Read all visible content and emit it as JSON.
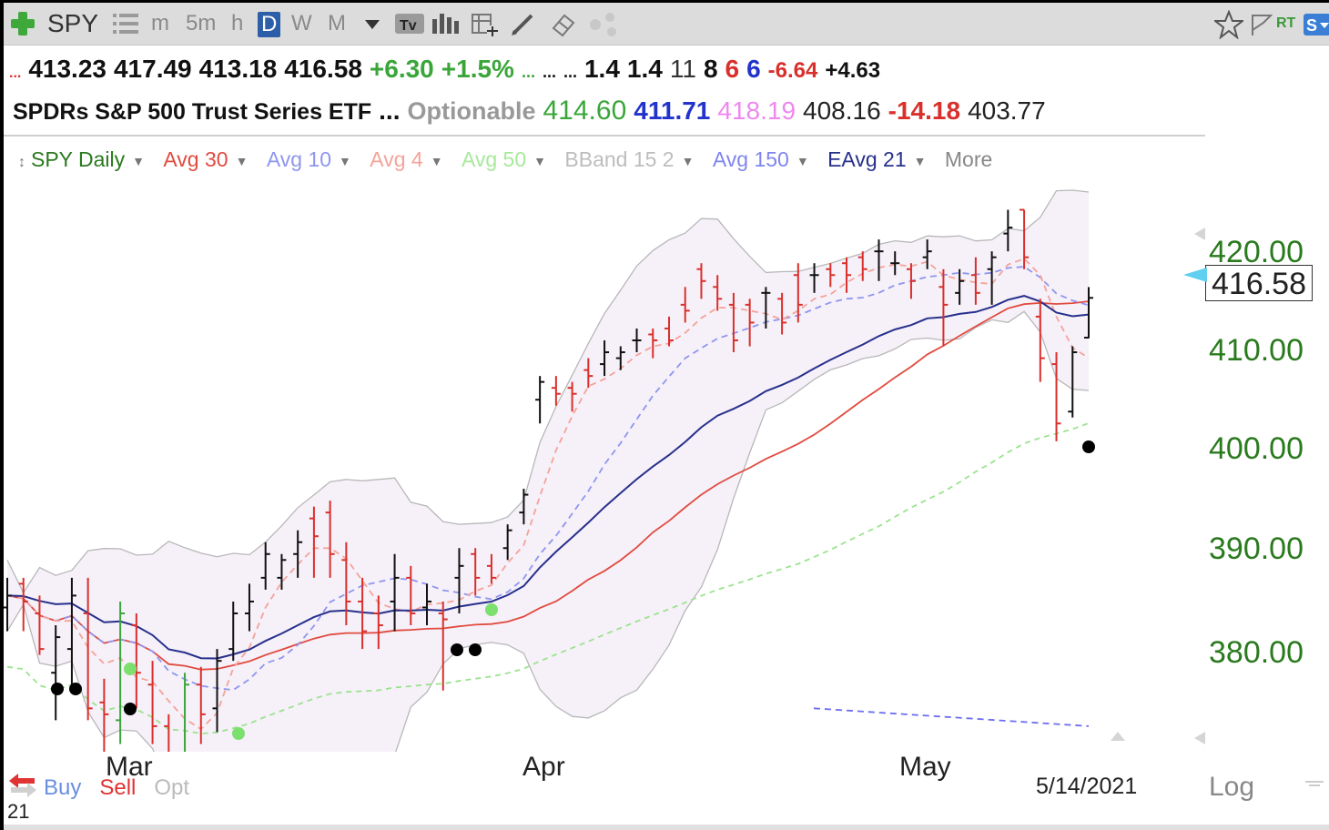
{
  "toolbar": {
    "symbol": "SPY",
    "intervals": [
      "m",
      "5m",
      "h",
      "D",
      "W",
      "M"
    ],
    "selected_interval": "D",
    "right_label": "RT"
  },
  "quote": {
    "lead": "...",
    "open": "413.23",
    "high": "417.49",
    "low": "413.18",
    "close": "416.58",
    "change": "+6.30",
    "change_pct": "+1.5%",
    "ell1": "...",
    "ell2": "...",
    "ell3": "...",
    "v1": "1.4",
    "v2": "1.4",
    "n11": "11",
    "n8": "8",
    "n6a": "6",
    "n6b": "6",
    "neg": "-6.64",
    "pos": "+4.63"
  },
  "info": {
    "name": "SPDRs S&P 500 Trust Series ETF",
    "ell": "...",
    "optionable": "Optionable",
    "p1": "414.60",
    "p2": "411.71",
    "p3": "418.19",
    "p4": "408.16",
    "p5": "-14.18",
    "p6": "403.77"
  },
  "legend": {
    "spy": "SPY Daily",
    "avg30": "Avg 30",
    "avg10": "Avg 10",
    "avg4": "Avg 4",
    "avg50": "Avg 50",
    "bband": "BBand 15 2",
    "avg150": "Avg 150",
    "eavg21": "EAvg 21",
    "more": "More"
  },
  "colors": {
    "up_bar": "#111111",
    "down_bar": "#d9302c",
    "green_bar": "#3aa63a",
    "avg30": "#e04b3f",
    "avg10": "#8f96ee",
    "avg4": "#f4a39a",
    "avg50": "#9be38f",
    "bband": "#b8b8b8",
    "avg150": "#6a6ef0",
    "eavg21": "#27308c",
    "axis_green": "#2a7a1e"
  },
  "chart_data": {
    "type": "candlestick",
    "y_axis_ticks": [
      "420.00",
      "410.00",
      "400.00",
      "390.00",
      "380.00"
    ],
    "ylim": [
      378.5,
      424.5
    ],
    "x_labels": [
      "Mar",
      "Apr",
      "May"
    ],
    "current_price": "416.58",
    "date": "5/14/2021",
    "bars": [
      {
        "o": 390.5,
        "h": 393.0,
        "l": 388.5,
        "c": 391.5
      },
      {
        "o": 392.5,
        "h": 393.0,
        "l": 388.5,
        "c": 391.0
      },
      {
        "o": 390.0,
        "h": 391.5,
        "l": 386.5,
        "c": 387.0
      },
      {
        "o": 385.0,
        "h": 389.0,
        "l": 381.0,
        "c": 388.0
      },
      {
        "o": 387.0,
        "h": 393.0,
        "l": 384.0,
        "c": 391.5
      },
      {
        "o": 390.0,
        "h": 393.0,
        "l": 381.0,
        "c": 382.0
      },
      {
        "o": 382.5,
        "h": 384.5,
        "l": 377.0,
        "c": 381.5
      },
      {
        "o": 381.0,
        "h": 391.0,
        "l": 379.0,
        "c": 390.0
      },
      {
        "o": 389.0,
        "h": 390.0,
        "l": 382.0,
        "c": 385.0
      },
      {
        "o": 384.0,
        "h": 386.0,
        "l": 379.0,
        "c": 380.5
      },
      {
        "o": 380.5,
        "h": 381.5,
        "l": 373.0,
        "c": 375.0
      },
      {
        "o": 376.0,
        "h": 385.0,
        "l": 375.0,
        "c": 384.0
      },
      {
        "o": 384.0,
        "h": 385.5,
        "l": 379.0,
        "c": 381.5
      },
      {
        "o": 382.0,
        "h": 387.0,
        "l": 380.0,
        "c": 386.0
      },
      {
        "o": 387.0,
        "h": 391.0,
        "l": 386.0,
        "c": 390.0
      },
      {
        "o": 390.0,
        "h": 392.5,
        "l": 388.5,
        "c": 391.0
      },
      {
        "o": 393.0,
        "h": 396.0,
        "l": 392.0,
        "c": 395.0
      },
      {
        "o": 393.0,
        "h": 395.0,
        "l": 392.0,
        "c": 394.5
      },
      {
        "o": 395.0,
        "h": 397.0,
        "l": 393.0,
        "c": 396.0
      },
      {
        "o": 398.0,
        "h": 399.0,
        "l": 393.0,
        "c": 396.5
      },
      {
        "o": 398.5,
        "h": 399.5,
        "l": 393.0,
        "c": 395.0
      },
      {
        "o": 394.5,
        "h": 396.0,
        "l": 389.0,
        "c": 391.0
      },
      {
        "o": 391.0,
        "h": 393.0,
        "l": 387.0,
        "c": 388.5
      },
      {
        "o": 390.0,
        "h": 391.5,
        "l": 387.0,
        "c": 389.0
      },
      {
        "o": 391.0,
        "h": 395.0,
        "l": 388.5,
        "c": 393.0
      },
      {
        "o": 393.0,
        "h": 394.0,
        "l": 389.0,
        "c": 390.0
      },
      {
        "o": 390.5,
        "h": 392.5,
        "l": 389.0,
        "c": 391.0
      },
      {
        "o": 390.0,
        "h": 391.0,
        "l": 383.5,
        "c": 389.5
      },
      {
        "o": 393.0,
        "h": 395.5,
        "l": 390.0,
        "c": 394.0
      },
      {
        "o": 395.0,
        "h": 395.5,
        "l": 391.5,
        "c": 393.0
      },
      {
        "o": 394.0,
        "h": 395.0,
        "l": 392.5,
        "c": 393.0
      },
      {
        "o": 395.5,
        "h": 397.5,
        "l": 394.5,
        "c": 397.0
      },
      {
        "o": 398.5,
        "h": 400.5,
        "l": 397.5,
        "c": 400.0
      },
      {
        "o": 408.0,
        "h": 410.0,
        "l": 406.0,
        "c": 409.5
      },
      {
        "o": 409.0,
        "h": 410.0,
        "l": 407.5,
        "c": 408.5
      },
      {
        "o": 409.0,
        "h": 409.5,
        "l": 407.0,
        "c": 408.5
      },
      {
        "o": 410.5,
        "h": 411.5,
        "l": 409.0,
        "c": 410.0
      },
      {
        "o": 411.0,
        "h": 413.0,
        "l": 410.0,
        "c": 412.0
      },
      {
        "o": 411.5,
        "h": 412.5,
        "l": 410.5,
        "c": 412.0
      },
      {
        "o": 413.0,
        "h": 414.0,
        "l": 412.0,
        "c": 413.0
      },
      {
        "o": 413.5,
        "h": 414.0,
        "l": 411.5,
        "c": 413.0
      },
      {
        "o": 414.0,
        "h": 415.0,
        "l": 412.5,
        "c": 413.0
      },
      {
        "o": 416.0,
        "h": 417.5,
        "l": 414.5,
        "c": 415.5
      },
      {
        "o": 419.0,
        "h": 419.5,
        "l": 416.5,
        "c": 418.0
      },
      {
        "o": 417.5,
        "h": 418.5,
        "l": 415.5,
        "c": 416.5
      },
      {
        "o": 416.0,
        "h": 417.0,
        "l": 412.0,
        "c": 413.0
      },
      {
        "o": 416.0,
        "h": 416.5,
        "l": 412.5,
        "c": 414.5
      },
      {
        "o": 417.0,
        "h": 417.5,
        "l": 414.0,
        "c": 417.0
      },
      {
        "o": 416.5,
        "h": 417.0,
        "l": 413.5,
        "c": 414.5
      },
      {
        "o": 418.5,
        "h": 419.5,
        "l": 414.5,
        "c": 416.0
      },
      {
        "o": 418.5,
        "h": 419.5,
        "l": 417.0,
        "c": 418.5
      },
      {
        "o": 419.0,
        "h": 419.5,
        "l": 417.5,
        "c": 418.5
      },
      {
        "o": 419.5,
        "h": 420.0,
        "l": 417.0,
        "c": 418.5
      },
      {
        "o": 420.0,
        "h": 420.5,
        "l": 418.0,
        "c": 419.0
      },
      {
        "o": 420.5,
        "h": 421.5,
        "l": 418.0,
        "c": 420.5
      },
      {
        "o": 419.5,
        "h": 420.5,
        "l": 418.5,
        "c": 419.5
      },
      {
        "o": 419.0,
        "h": 419.5,
        "l": 416.5,
        "c": 418.0
      },
      {
        "o": 420.0,
        "h": 421.5,
        "l": 419.0,
        "c": 420.5
      },
      {
        "o": 417.5,
        "h": 419.0,
        "l": 412.5,
        "c": 416.0
      },
      {
        "o": 417.0,
        "h": 419.0,
        "l": 416.0,
        "c": 418.0
      },
      {
        "o": 418.5,
        "h": 420.0,
        "l": 416.0,
        "c": 417.0
      },
      {
        "o": 419.0,
        "h": 420.5,
        "l": 416.0,
        "c": 420.0
      },
      {
        "o": 422.0,
        "h": 424.0,
        "l": 420.5,
        "c": 422.5
      },
      {
        "o": 424.0,
        "h": 424.0,
        "l": 419.0,
        "c": 420.0
      },
      {
        "o": 415.0,
        "h": 416.5,
        "l": 409.5,
        "c": 411.5
      },
      {
        "o": 411.0,
        "h": 412.0,
        "l": 404.5,
        "c": 406.0
      },
      {
        "o": 407.0,
        "h": 412.5,
        "l": 406.5,
        "c": 412.0
      },
      {
        "o": 413.23,
        "h": 417.49,
        "l": 413.18,
        "c": 416.58
      }
    ]
  },
  "bottom": {
    "buy": "Buy",
    "sell": "Sell",
    "opt": "Opt",
    "log": "Log",
    "count": "21"
  }
}
